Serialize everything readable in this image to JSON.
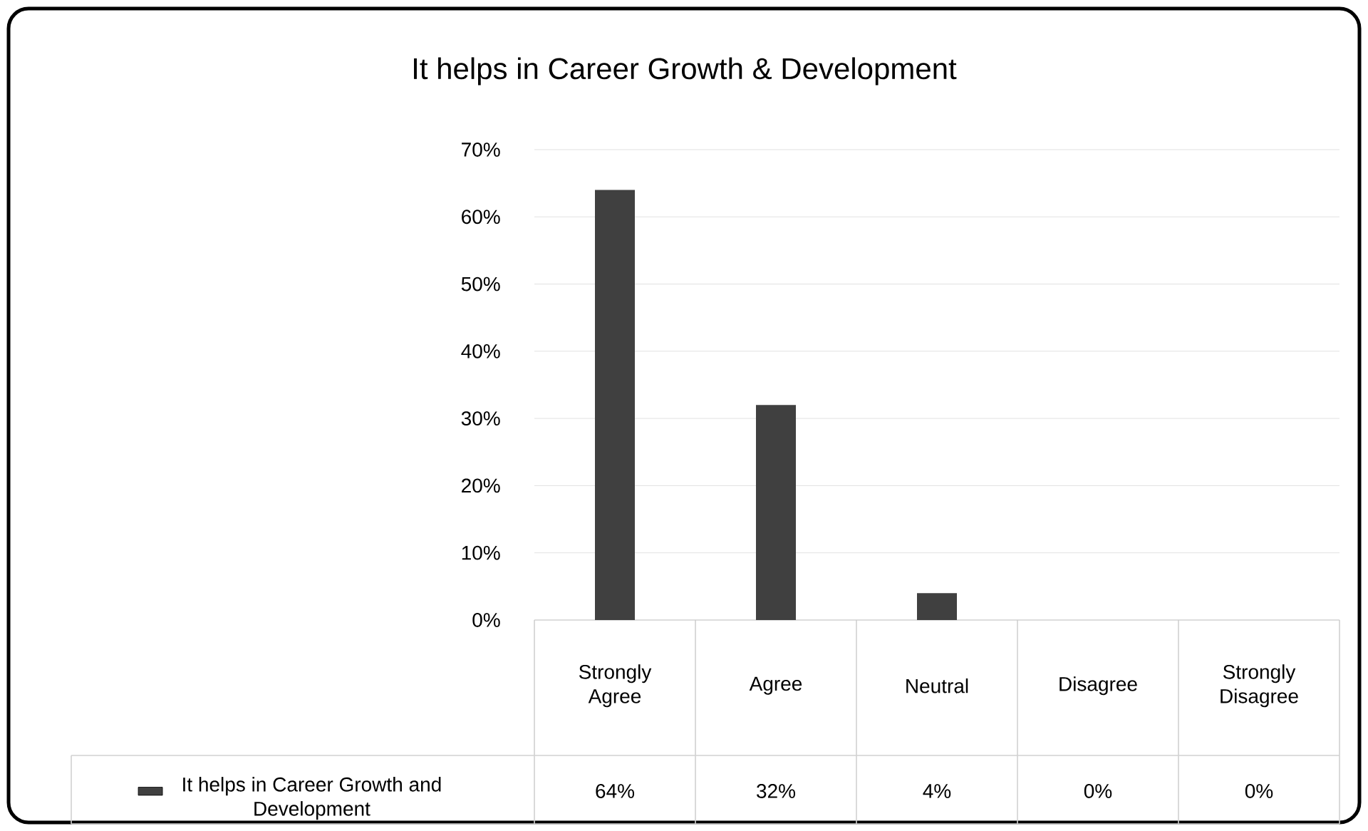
{
  "chart_data": {
    "type": "bar",
    "title": "It helps in Career Growth & Development",
    "categories": [
      "Strongly Agree",
      "Agree",
      "Neutral",
      "Disagree",
      "Strongly Disagree"
    ],
    "series": [
      {
        "name": "It helps in Career Growth and Development",
        "color": "#404040",
        "values": [
          64,
          32,
          4,
          0,
          0
        ],
        "value_labels": [
          "64%",
          "32%",
          "4%",
          "0%",
          "0%"
        ]
      }
    ],
    "ylim": [
      0,
      70
    ],
    "yticks": [
      {
        "value": 0,
        "label": "0%"
      },
      {
        "value": 10,
        "label": "10%"
      },
      {
        "value": 20,
        "label": "20%"
      },
      {
        "value": 30,
        "label": "30%"
      },
      {
        "value": 40,
        "label": "40%"
      },
      {
        "value": 50,
        "label": "50%"
      },
      {
        "value": 60,
        "label": "60%"
      },
      {
        "value": 70,
        "label": "70%"
      }
    ],
    "grid": "y",
    "legend": "bottom left"
  }
}
